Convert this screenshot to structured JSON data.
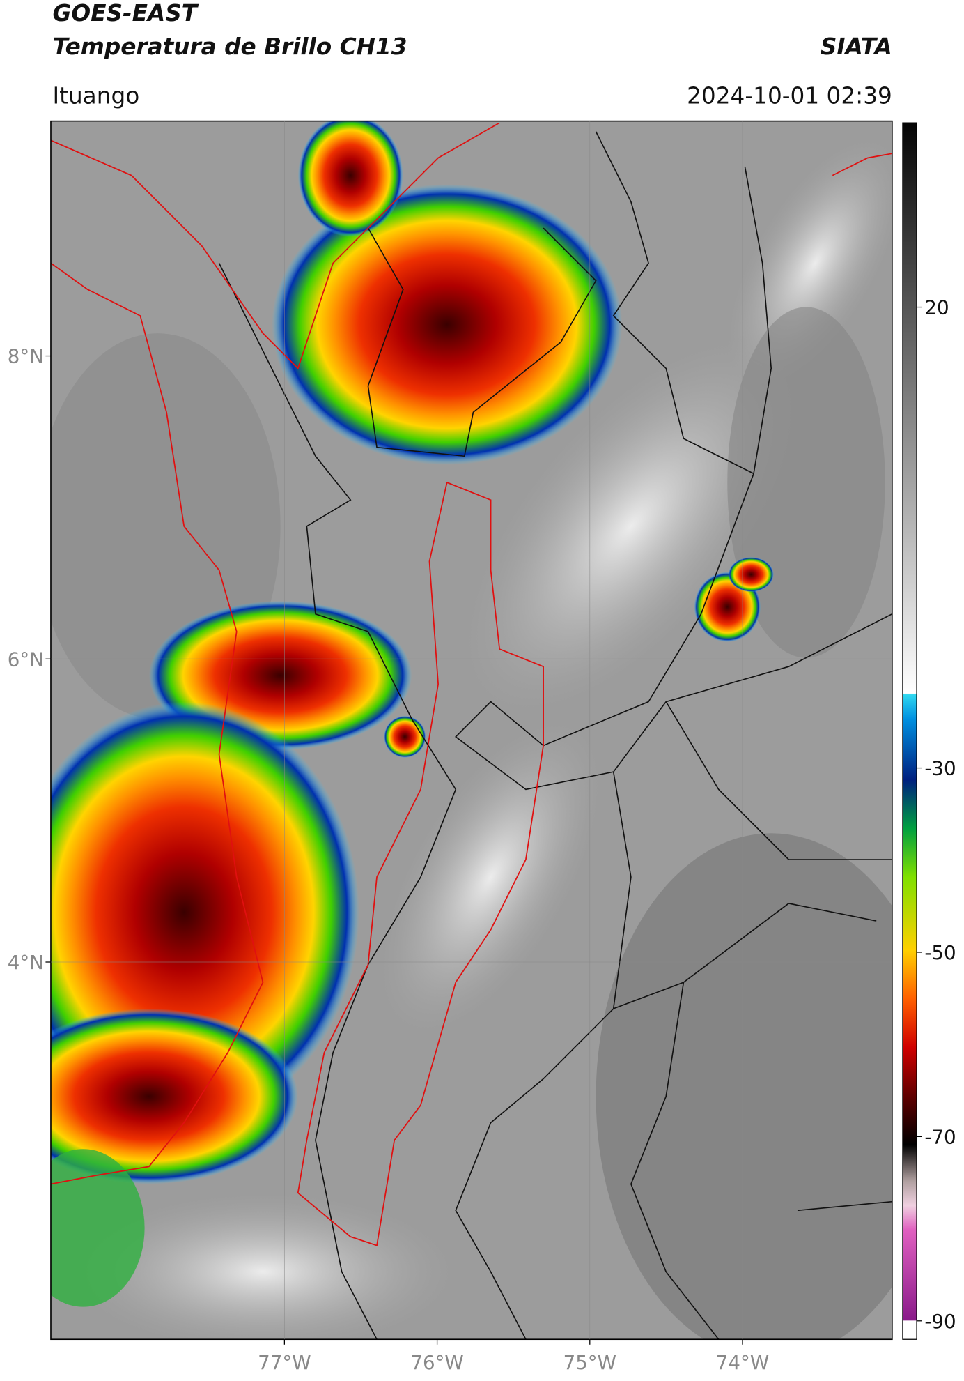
{
  "header": {
    "title": "GOES-EAST",
    "subtitle": "Temperatura de Brillo CH13",
    "brand": "SIATA",
    "location": "Ituango",
    "datetime": "2024-10-01 02:39"
  },
  "map": {
    "xlim": [
      -78.53,
      -73.02
    ],
    "ylim": [
      1.51,
      9.55
    ],
    "xticks": [
      {
        "value": -77,
        "label": "77°W"
      },
      {
        "value": -76,
        "label": "76°W"
      },
      {
        "value": -75,
        "label": "75°W"
      },
      {
        "value": -74,
        "label": "74°W"
      }
    ],
    "yticks": [
      {
        "value": 8,
        "label": "8°N"
      },
      {
        "value": 6,
        "label": "6°N"
      },
      {
        "value": 4,
        "label": "4°N"
      }
    ],
    "grid": true
  },
  "colorbar": {
    "lim": [
      -92,
      40
    ],
    "ticks": [
      20,
      -30,
      -50,
      -70,
      -90
    ]
  }
}
